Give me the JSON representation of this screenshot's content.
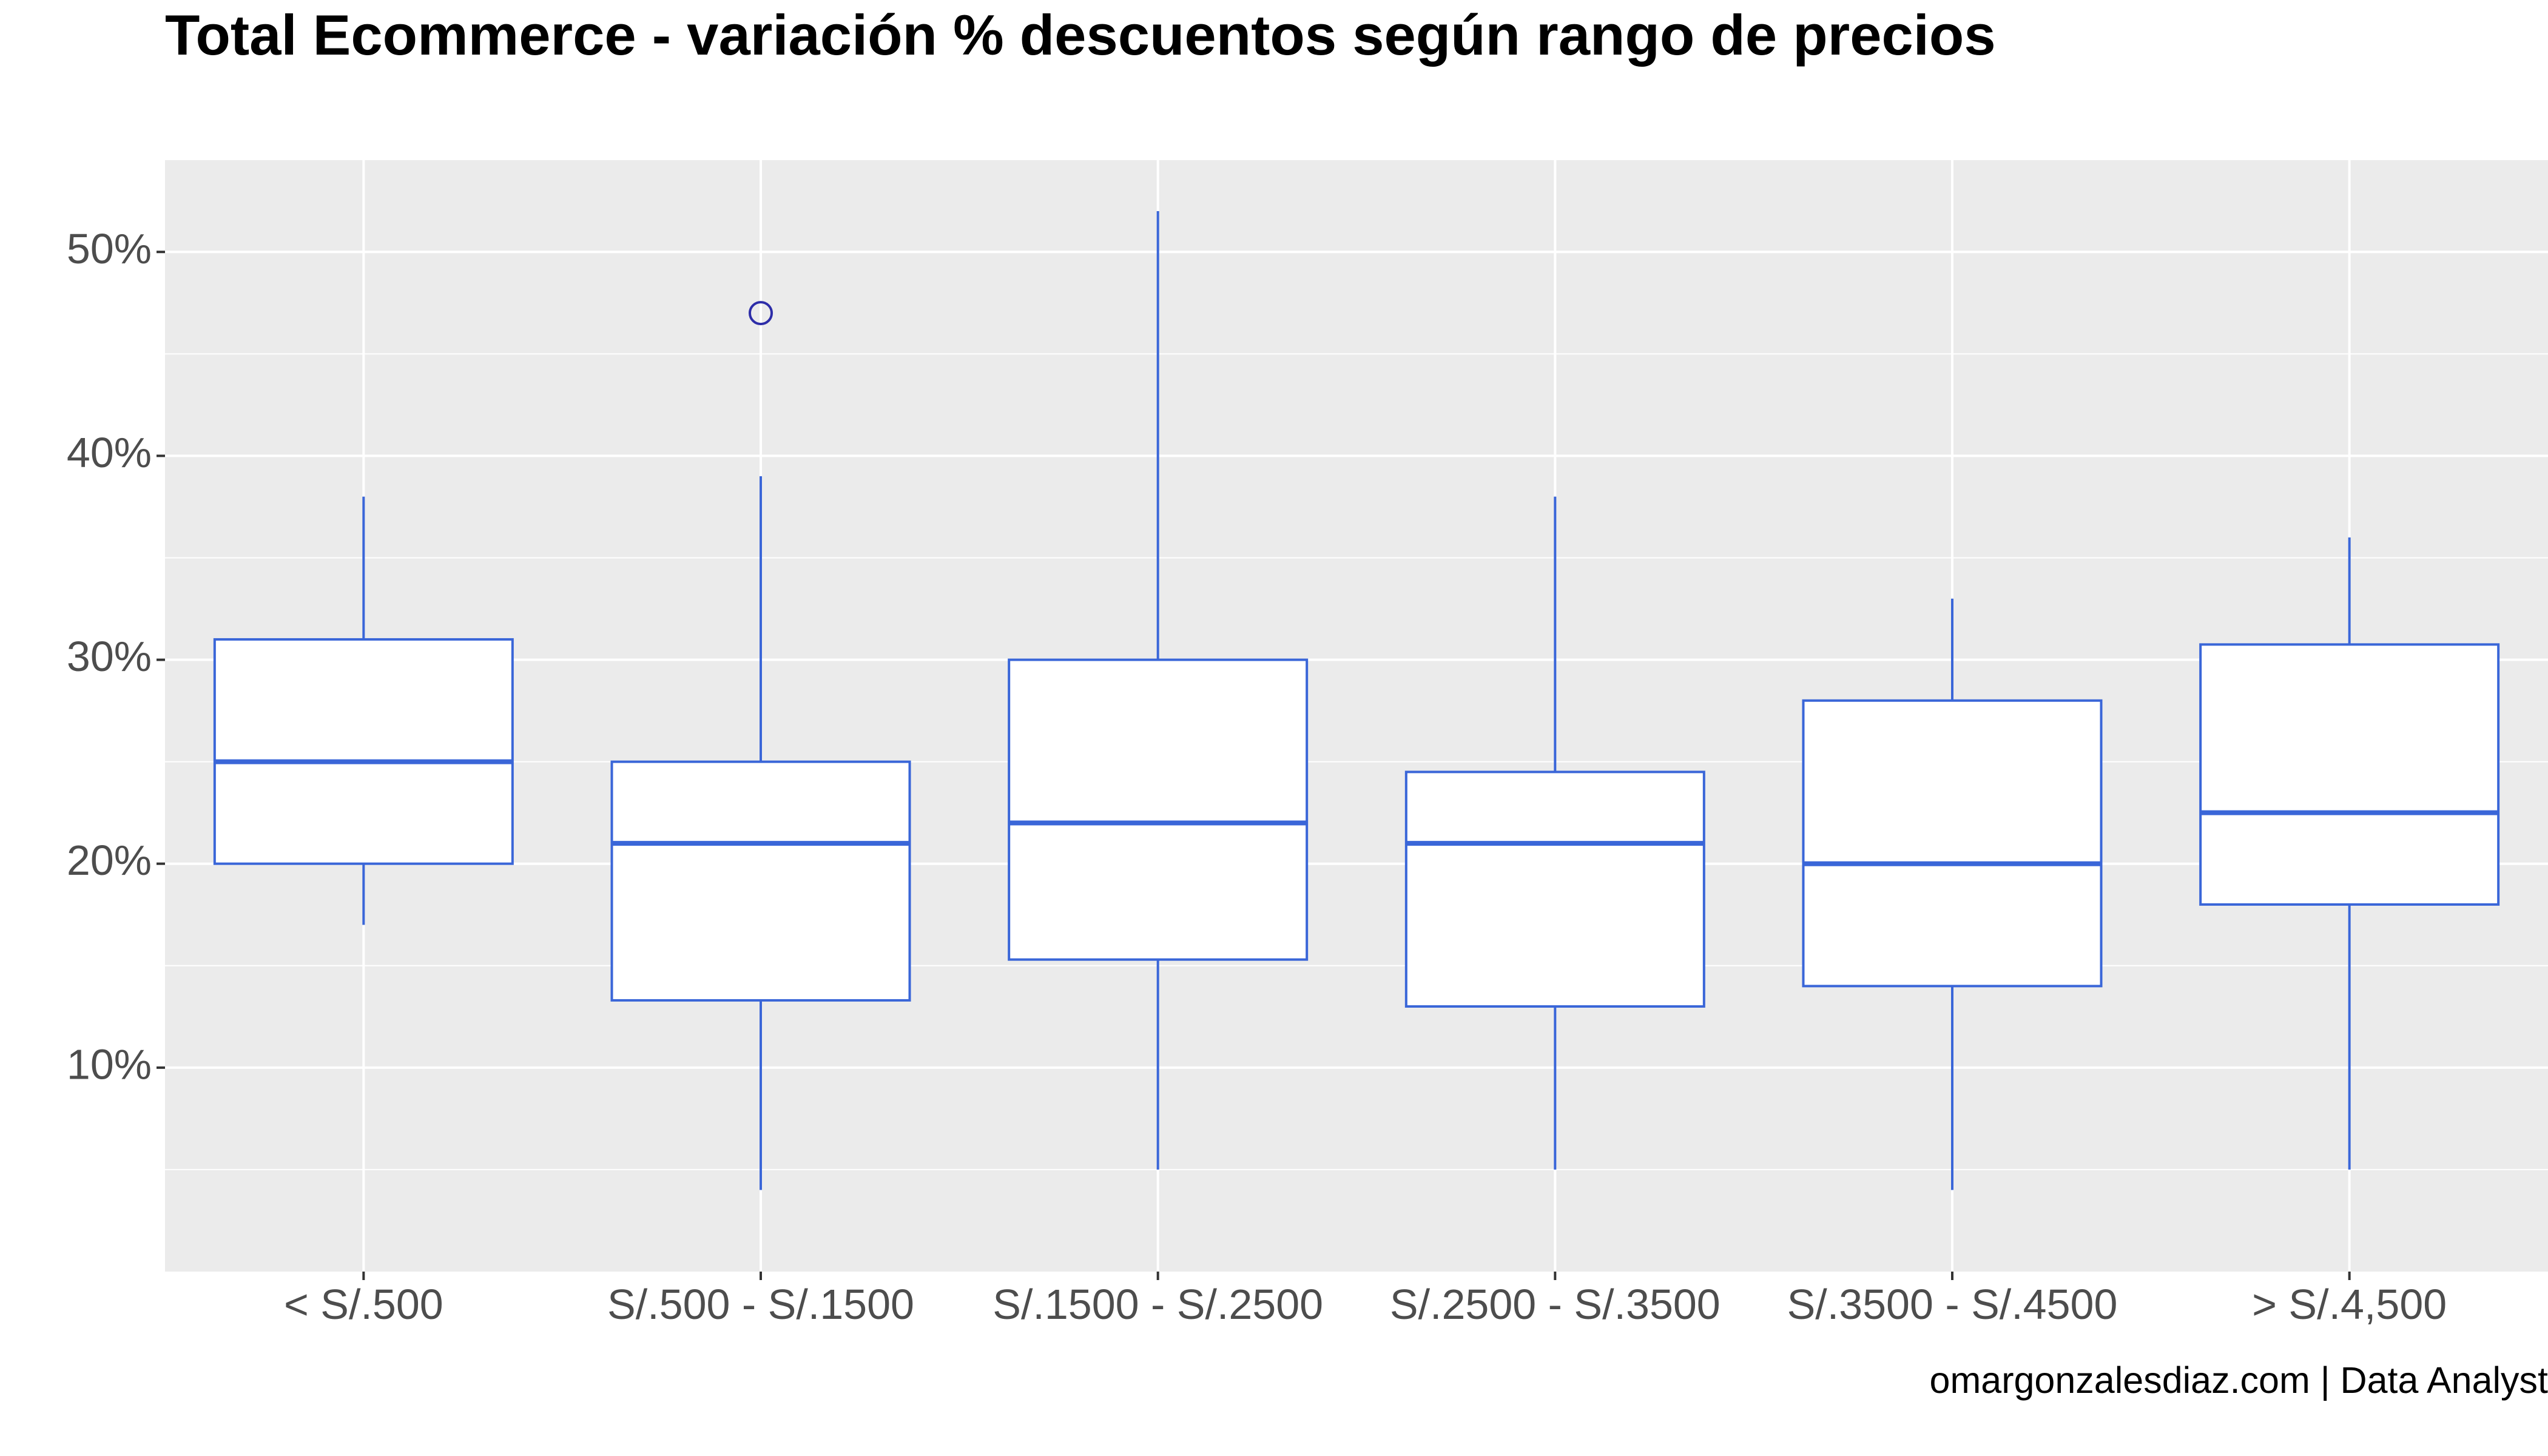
{
  "chart_data": {
    "type": "boxplot",
    "title": "Total Ecommerce - variación % descuentos según rango de precios",
    "xlabel": "",
    "ylabel": "",
    "ylim": [
      0.0,
      0.545
    ],
    "y_ticks": [
      0.1,
      0.2,
      0.3,
      0.4,
      0.5
    ],
    "y_tick_labels": [
      "10%",
      "20%",
      "30%",
      "40%",
      "50%"
    ],
    "categories": [
      "< S/.500",
      "S/.500 - S/.1500",
      "S/.1500 - S/.2500",
      "S/.2500 - S/.3500",
      "S/.3500 - S/.4500",
      "> S/.4,500"
    ],
    "boxes": [
      {
        "category": "< S/.500",
        "whisker_low": 0.17,
        "q1": 0.2,
        "median": 0.25,
        "q3": 0.31,
        "whisker_high": 0.38,
        "outliers": []
      },
      {
        "category": "S/.500 - S/.1500",
        "whisker_low": 0.04,
        "q1": 0.133,
        "median": 0.21,
        "q3": 0.25,
        "whisker_high": 0.39,
        "outliers": [
          0.47
        ]
      },
      {
        "category": "S/.1500 - S/.2500",
        "whisker_low": 0.05,
        "q1": 0.153,
        "median": 0.22,
        "q3": 0.3,
        "whisker_high": 0.52,
        "outliers": []
      },
      {
        "category": "S/.2500 - S/.3500",
        "whisker_low": 0.05,
        "q1": 0.13,
        "median": 0.21,
        "q3": 0.245,
        "whisker_high": 0.38,
        "outliers": []
      },
      {
        "category": "S/.3500 - S/.4500",
        "whisker_low": 0.04,
        "q1": 0.14,
        "median": 0.2,
        "q3": 0.28,
        "whisker_high": 0.33,
        "outliers": []
      },
      {
        "category": "> S/.4,500",
        "whisker_low": 0.05,
        "q1": 0.18,
        "median": 0.225,
        "q3": 0.3075,
        "whisker_high": 0.36,
        "outliers": []
      }
    ],
    "grid": true,
    "legend": "none",
    "colors": {
      "panel": "#EBEBEB",
      "grid": "#FFFFFF",
      "box_fill": "#FFFFFF",
      "box_stroke": "#3A66D8",
      "outlier": "#2D2DA8",
      "tick_text": "#4D4D4D"
    }
  },
  "caption": "omargonzalesdiaz.com | Data Analyst"
}
